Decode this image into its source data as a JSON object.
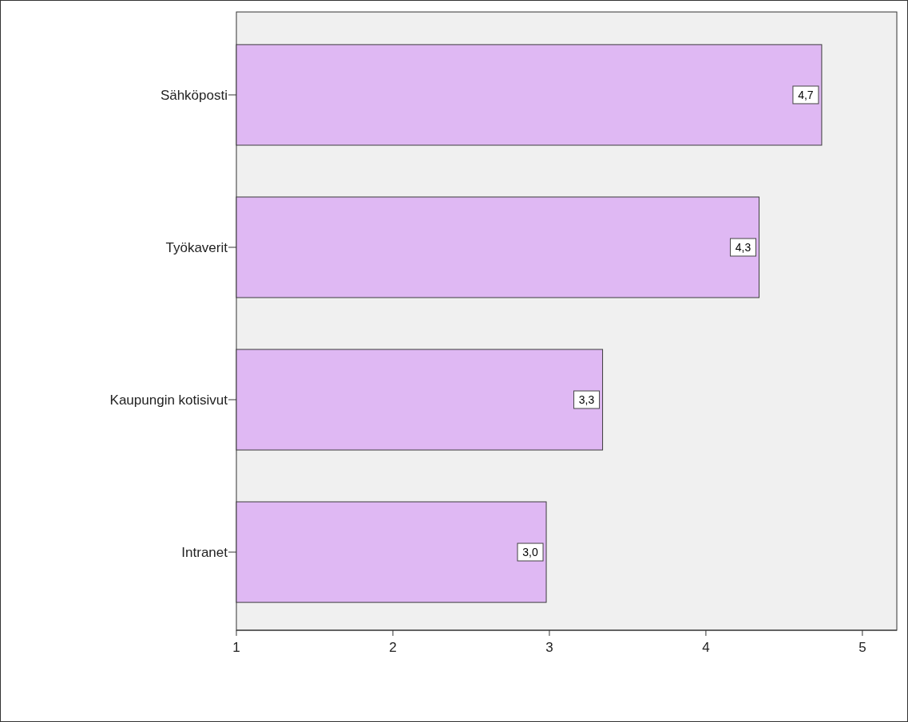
{
  "chart_data": {
    "type": "bar",
    "orientation": "horizontal",
    "categories": [
      "Sähköposti",
      "Työkaverit",
      "Kaupungin kotisivut",
      "Intranet"
    ],
    "values": [
      4.74,
      4.34,
      3.34,
      2.98
    ],
    "value_labels": [
      "4,7",
      "4,3",
      "3,3",
      "3,0"
    ],
    "color": "#dfb8f3",
    "xlim": [
      1,
      5.22
    ],
    "xticks": [
      1,
      2,
      3,
      4,
      5
    ]
  }
}
